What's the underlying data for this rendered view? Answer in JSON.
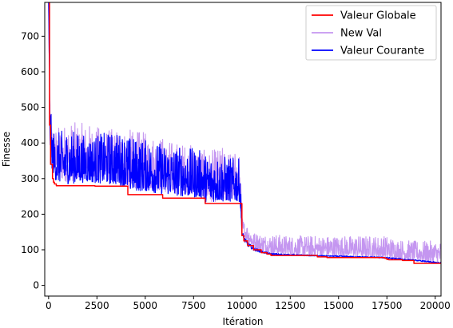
{
  "chart_data": {
    "type": "line",
    "title": "",
    "xlabel": "Itération",
    "ylabel": "Finesse",
    "xlim": [
      -200,
      20300
    ],
    "ylim": [
      -30,
      795
    ],
    "xticks": [
      0,
      2500,
      5000,
      7500,
      10000,
      12500,
      15000,
      17500,
      20000
    ],
    "xtick_labels": [
      "0",
      "2500",
      "5000",
      "7500",
      "10000",
      "12500",
      "15000",
      "17500",
      "20000"
    ],
    "yticks": [
      0,
      100,
      200,
      300,
      400,
      500,
      600,
      700
    ],
    "ytick_labels": [
      "0",
      "100",
      "200",
      "300",
      "400",
      "500",
      "600",
      "700"
    ],
    "grid": false,
    "legend_position": "upper right",
    "series": [
      {
        "name": "Valeur Globale",
        "color": "#ff0000",
        "style": "step",
        "x": [
          0,
          50,
          100,
          200,
          250,
          300,
          400,
          2400,
          4100,
          5900,
          8100,
          10000,
          10100,
          10300,
          10600,
          11000,
          11300,
          11500,
          13900,
          14400,
          17400,
          17500,
          17600,
          18300,
          18900,
          20300
        ],
        "y": [
          795,
          450,
          340,
          300,
          290,
          285,
          280,
          279,
          255,
          245,
          230,
          140,
          125,
          112,
          100,
          92,
          88,
          84,
          80,
          78,
          76,
          73,
          72,
          70,
          62,
          62
        ]
      },
      {
        "name": "New Val",
        "color": "#c496f0",
        "style": "noisy",
        "x": [
          0,
          50,
          100,
          200,
          400,
          1000,
          2000,
          3000,
          3900,
          4100,
          5000,
          5900,
          6100,
          7000,
          7900,
          8100,
          9000,
          9900,
          10000,
          10100,
          10300,
          10600,
          11000,
          11500,
          12500,
          14000,
          16000,
          17500,
          18000,
          19000,
          20300
        ],
        "y_low": [
          795,
          450,
          380,
          340,
          300,
          290,
          300,
          295,
          290,
          270,
          270,
          265,
          260,
          255,
          250,
          235,
          235,
          235,
          150,
          140,
          125,
          105,
          95,
          88,
          85,
          82,
          80,
          76,
          74,
          70,
          62
        ],
        "y_high": [
          795,
          650,
          500,
          450,
          445,
          460,
          455,
          440,
          440,
          440,
          430,
          420,
          410,
          400,
          395,
          375,
          390,
          370,
          200,
          180,
          170,
          150,
          145,
          145,
          140,
          140,
          140,
          140,
          130,
          125,
          125
        ]
      },
      {
        "name": "Valeur Courante",
        "color": "#0000ff",
        "style": "noisy",
        "x": [
          0,
          50,
          100,
          200,
          400,
          1000,
          2000,
          3000,
          3900,
          4100,
          5000,
          5900,
          6100,
          7000,
          7900,
          8100,
          9000,
          9900,
          10000,
          10100,
          10300,
          10600,
          11000,
          11500,
          12500,
          14000,
          16000,
          17500,
          18000,
          19000,
          20300
        ],
        "y_low": [
          795,
          450,
          350,
          320,
          290,
          285,
          290,
          285,
          280,
          265,
          265,
          255,
          255,
          250,
          245,
          235,
          235,
          235,
          140,
          125,
          110,
          98,
          92,
          86,
          84,
          82,
          79,
          76,
          73,
          69,
          61
        ],
        "y_high": [
          795,
          620,
          500,
          440,
          430,
          440,
          420,
          430,
          430,
          420,
          410,
          400,
          395,
          390,
          380,
          370,
          365,
          355,
          160,
          140,
          122,
          108,
          98,
          91,
          88,
          85,
          82,
          80,
          77,
          72,
          65
        ]
      }
    ]
  }
}
